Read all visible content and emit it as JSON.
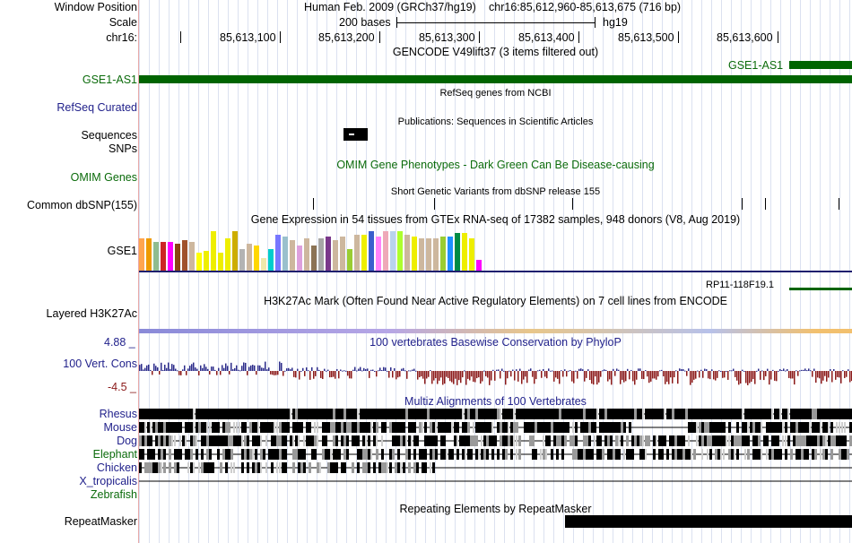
{
  "header": {
    "window_position_label": "Window Position",
    "scale_label": "Scale",
    "chr_label": "chr16:",
    "assembly": "Human Feb. 2009 (GRCh37/hg19)",
    "position": "chr16:85,612,960-85,613,675 (716 bp)",
    "scale_text": "200 bases",
    "scale_db": "hg19",
    "ruler_ticks": [
      "85,613,100",
      "85,613,200",
      "85,613,300",
      "85,613,400",
      "85,613,500",
      "85,613,600"
    ]
  },
  "tracks": {
    "gencode": {
      "title": "GENCODE V49lift37 (3 items filtered out)",
      "label": "GSE1-AS1",
      "item": "GSE1-AS1"
    },
    "refseq": {
      "title": "RefSeq genes from NCBI",
      "label": "RefSeq Curated"
    },
    "publications": {
      "title": "Publications: Sequences in Scientific Articles",
      "label_sequences": "Sequences",
      "label_snps": "SNPs"
    },
    "omim": {
      "title": "OMIM Gene Phenotypes - Dark Green Can Be Disease-causing",
      "label": "OMIM Genes"
    },
    "dbsnp": {
      "title": "Short Genetic Variants from dbSNP release 155",
      "label": "Common dbSNP(155)"
    },
    "gtex": {
      "title": "Gene Expression in 54 tissues from GTEx RNA-seq of 17382 samples, 948 donors (V8, Aug 2019)",
      "label": "GSE1",
      "next_item": "RP11-118F19.1"
    },
    "h3k27ac": {
      "title": "H3K27Ac Mark (Often Found Near Active Regulatory Elements) on 7 cell lines from ENCODE",
      "label": "Layered H3K27Ac"
    },
    "conservation": {
      "title": "100 vertebrates Basewise Conservation by PhyloP",
      "label": "100 Vert. Cons",
      "max": "4.88 _",
      "min": "-4.5 _"
    },
    "multiz": {
      "title": "Multiz Alignments of 100 Vertebrates",
      "species": [
        {
          "name": "Rhesus",
          "color": "#1f1f8a"
        },
        {
          "name": "Mouse",
          "color": "#1f1f8a"
        },
        {
          "name": "Dog",
          "color": "#1f1f8a"
        },
        {
          "name": "Elephant",
          "color": "#0b6b0b"
        },
        {
          "name": "Chicken",
          "color": "#1f1f8a"
        },
        {
          "name": "X_tropicalis",
          "color": "#1f1f8a"
        },
        {
          "name": "Zebrafish",
          "color": "#0b6b0b"
        }
      ]
    },
    "repeatmasker": {
      "title": "Repeating Elements by RepeatMasker",
      "label": "RepeatMasker"
    }
  },
  "colors": {
    "gencode_green": "#006400",
    "label_navy": "#1f1f8a",
    "label_green": "#0b6b0b",
    "conservation_pos": "#2b2b8a",
    "conservation_neg": "#8b1a1a"
  },
  "gtex_tissue_colors": [
    "#FFA54F",
    "#EE9A00",
    "#8FBC8F",
    "#CD2626",
    "#FF00FF",
    "#8B4513",
    "#A0522D",
    "#CDB79E",
    "#FFFF00",
    "#EEEE00",
    "#EEEE00",
    "#EEEE00",
    "#EEEE00",
    "#CDAD00",
    "#B3B3B3",
    "#CDB79E",
    "#FFD700",
    "#EEE8AA",
    "#00CDCD",
    "#7777FF",
    "#9AC0CD",
    "#CDB79E",
    "#DDA0DD",
    "#CDB79E",
    "#8B7355",
    "#A6A6A6",
    "#7A378B",
    "#CDB79E",
    "#CDB79E",
    "#9ACD32",
    "#CDB79E",
    "#EEEE00",
    "#3A5FCD",
    "#FF83FA",
    "#EEA9B8",
    "#B9D3EE",
    "#ADFF2F",
    "#CDB79E",
    "#EEEE00",
    "#CDB79E",
    "#CDB79E",
    "#CDB79E",
    "#9ACD32",
    "#1E90FF",
    "#008B45",
    "#EEEE00",
    "#EEEE00",
    "#FF00FF"
  ],
  "gtex_values": [
    36,
    36,
    32,
    32,
    32,
    30,
    34,
    32,
    20,
    22,
    44,
    20,
    36,
    44,
    24,
    30,
    28,
    14,
    24,
    40,
    38,
    34,
    28,
    36,
    28,
    36,
    38,
    34,
    38,
    24,
    40,
    40,
    44,
    38,
    44,
    44,
    44,
    40,
    38,
    36,
    36,
    36,
    38,
    38,
    42,
    42,
    36,
    12
  ]
}
